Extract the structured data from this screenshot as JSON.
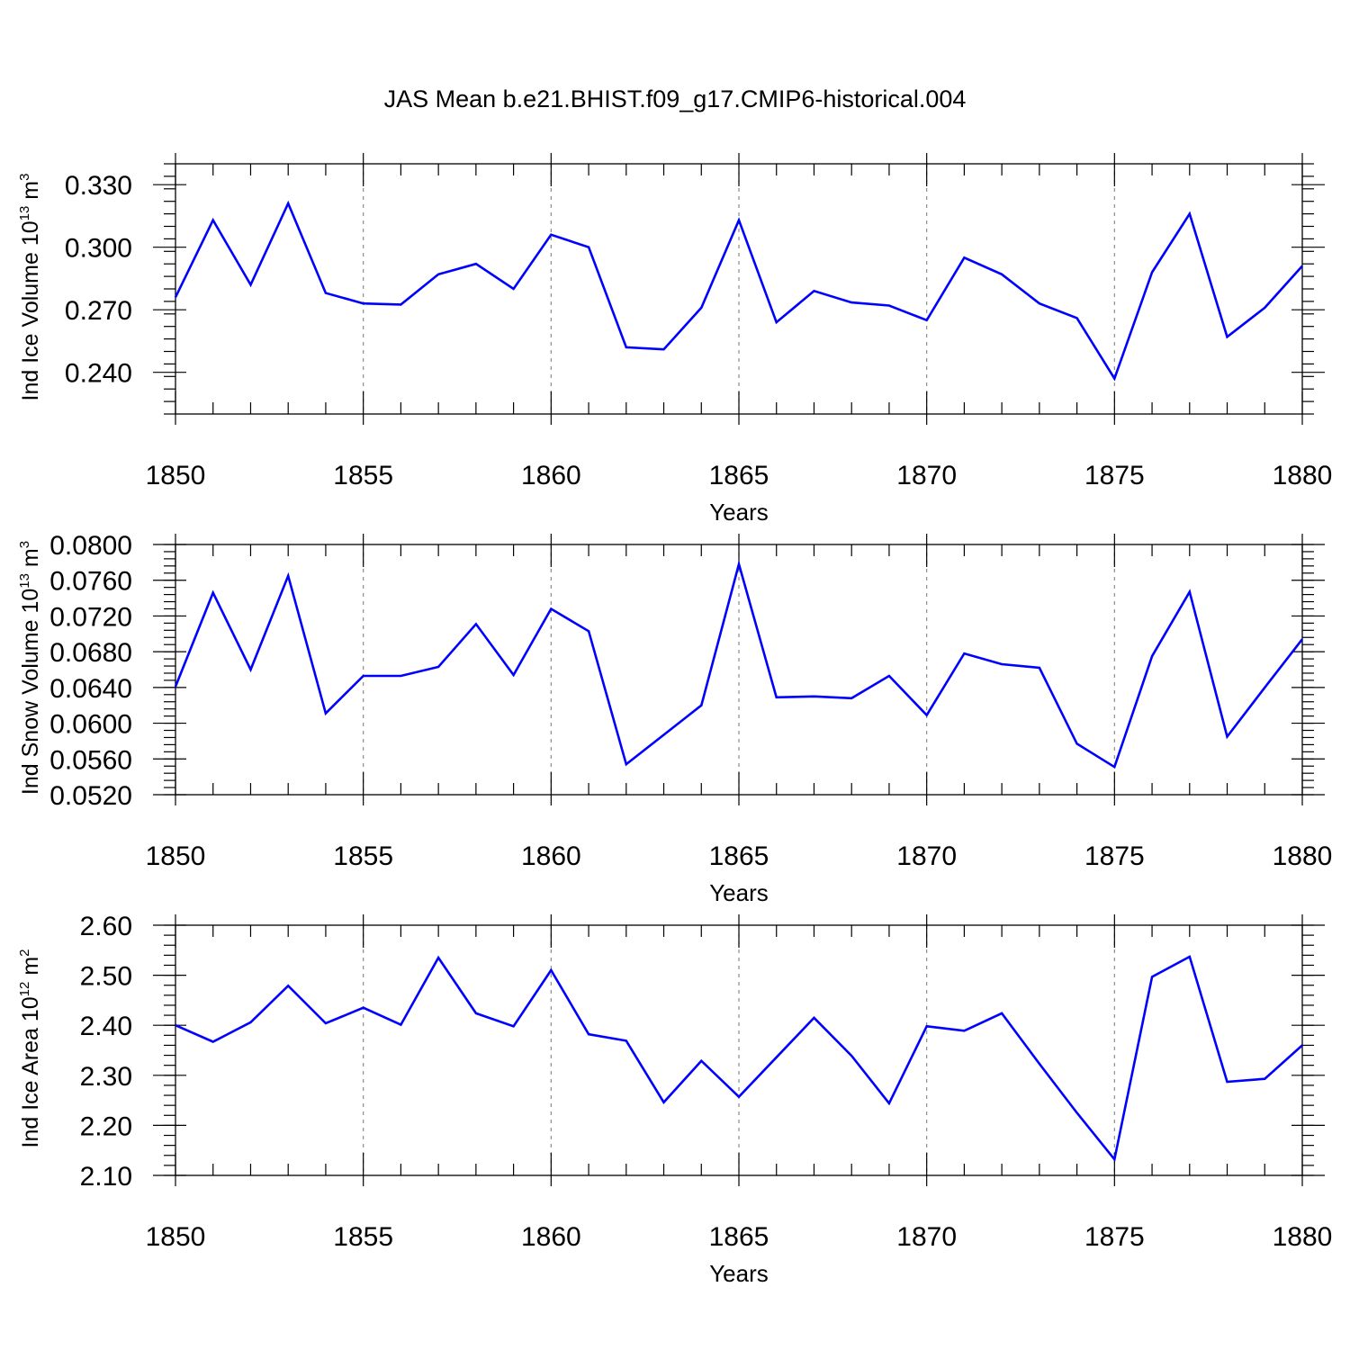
{
  "title": "JAS Mean b.e21.BHIST.f09_g17.CMIP6-historical.004",
  "colors": {
    "line": "#0000ff",
    "grid": "#8c8c8c",
    "axis": "#000000"
  },
  "chart_data": [
    {
      "type": "line",
      "ylabel": "Ind Ice Volume 10",
      "ylabel_exp": "13",
      "ylabel_unit": " m",
      "ylabel_unit_exp": "3",
      "xlabel": "Years",
      "xlim": [
        1850,
        1880
      ],
      "ylim": [
        0.22,
        0.34
      ],
      "x_ticks": [
        1850,
        1855,
        1860,
        1865,
        1870,
        1875,
        1880
      ],
      "y_ticks": [
        0.24,
        0.27,
        0.3,
        0.33
      ],
      "y_tick_labels": [
        "0.240",
        "0.270",
        "0.300",
        "0.330"
      ],
      "y_minor_step": 0.006,
      "grid": "vertical dashed at major x ticks",
      "x": [
        1850,
        1851,
        1852,
        1853,
        1854,
        1855,
        1856,
        1857,
        1858,
        1859,
        1860,
        1861,
        1862,
        1863,
        1864,
        1865,
        1866,
        1867,
        1868,
        1869,
        1870,
        1871,
        1872,
        1873,
        1874,
        1875,
        1876,
        1877,
        1878,
        1879,
        1880
      ],
      "series": [
        {
          "name": "Ind Ice Volume",
          "values": [
            0.276,
            0.313,
            0.282,
            0.321,
            0.278,
            0.273,
            0.2725,
            0.287,
            0.292,
            0.28,
            0.306,
            0.3,
            0.252,
            0.251,
            0.271,
            0.313,
            0.264,
            0.279,
            0.2735,
            0.272,
            0.265,
            0.295,
            0.287,
            0.273,
            0.266,
            0.237,
            0.288,
            0.316,
            0.257,
            0.271,
            0.291
          ]
        }
      ]
    },
    {
      "type": "line",
      "ylabel": "Ind Snow Volume 10",
      "ylabel_exp": "13",
      "ylabel_unit": " m",
      "ylabel_unit_exp": "3",
      "xlabel": "Years",
      "xlim": [
        1850,
        1880
      ],
      "ylim": [
        0.052,
        0.08
      ],
      "x_ticks": [
        1850,
        1855,
        1860,
        1865,
        1870,
        1875,
        1880
      ],
      "y_ticks": [
        0.052,
        0.056,
        0.06,
        0.064,
        0.068,
        0.072,
        0.076,
        0.08
      ],
      "y_tick_labels": [
        "0.0520",
        "0.0560",
        "0.0600",
        "0.0640",
        "0.0680",
        "0.0720",
        "0.0760",
        "0.0800"
      ],
      "y_minor_step": 0.0008,
      "grid": "vertical dashed at major x ticks",
      "x": [
        1850,
        1851,
        1852,
        1853,
        1854,
        1855,
        1856,
        1857,
        1858,
        1859,
        1860,
        1861,
        1862,
        1863,
        1864,
        1865,
        1866,
        1867,
        1868,
        1869,
        1870,
        1871,
        1872,
        1873,
        1874,
        1875,
        1876,
        1877,
        1878,
        1879,
        1880
      ],
      "series": [
        {
          "name": "Ind Snow Volume",
          "values": [
            0.0641,
            0.0746,
            0.066,
            0.0765,
            0.0611,
            0.0653,
            0.0653,
            0.0663,
            0.0711,
            0.0654,
            0.0728,
            0.0703,
            0.0554,
            0.0587,
            0.062,
            0.0778,
            0.0629,
            0.063,
            0.0628,
            0.0653,
            0.0609,
            0.0678,
            0.0666,
            0.0662,
            0.0577,
            0.0551,
            0.0675,
            0.0747,
            0.0585,
            0.064,
            0.0694
          ]
        }
      ]
    },
    {
      "type": "line",
      "ylabel": "Ind Ice Area 10",
      "ylabel_exp": "12",
      "ylabel_unit": " m",
      "ylabel_unit_exp": "2",
      "xlabel": "Years",
      "xlim": [
        1850,
        1880
      ],
      "ylim": [
        2.1,
        2.6
      ],
      "x_ticks": [
        1850,
        1855,
        1860,
        1865,
        1870,
        1875,
        1880
      ],
      "y_ticks": [
        2.1,
        2.2,
        2.3,
        2.4,
        2.5,
        2.6
      ],
      "y_tick_labels": [
        "2.10",
        "2.20",
        "2.30",
        "2.40",
        "2.50",
        "2.60"
      ],
      "y_minor_step": 0.02,
      "grid": "vertical dashed at major x ticks",
      "x": [
        1850,
        1851,
        1852,
        1853,
        1854,
        1855,
        1856,
        1857,
        1858,
        1859,
        1860,
        1861,
        1862,
        1863,
        1864,
        1865,
        1866,
        1867,
        1868,
        1869,
        1870,
        1871,
        1872,
        1873,
        1874,
        1875,
        1876,
        1877,
        1878,
        1879,
        1880
      ],
      "series": [
        {
          "name": "Ind Ice Area",
          "values": [
            2.4,
            2.367,
            2.406,
            2.479,
            2.404,
            2.435,
            2.401,
            2.535,
            2.424,
            2.398,
            2.51,
            2.382,
            2.369,
            2.246,
            2.329,
            2.257,
            2.336,
            2.415,
            2.339,
            2.244,
            2.398,
            2.389,
            2.424,
            2.323,
            2.225,
            2.132,
            2.497,
            2.537,
            2.287,
            2.293,
            2.36
          ]
        }
      ]
    }
  ]
}
